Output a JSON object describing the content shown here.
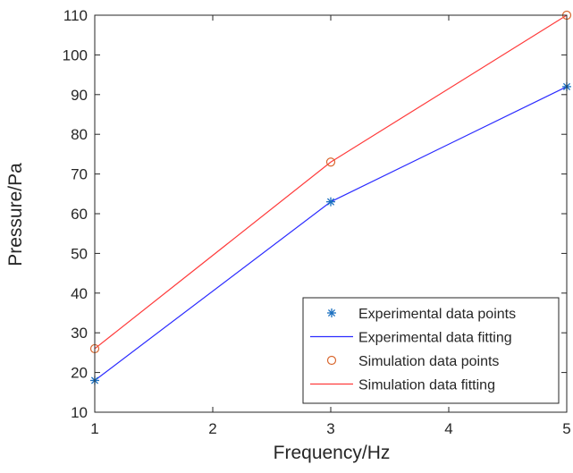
{
  "chart_data": {
    "type": "line",
    "title": "",
    "xlabel": "Frequency/Hz",
    "ylabel": "Pressure/Pa",
    "xlim": [
      1,
      5
    ],
    "ylim": [
      10,
      110
    ],
    "xticks": [
      1,
      2,
      3,
      4,
      5
    ],
    "yticks": [
      10,
      20,
      30,
      40,
      50,
      60,
      70,
      80,
      90,
      100,
      110
    ],
    "grid": false,
    "legend_position": "bottom-right",
    "series": [
      {
        "name": "Experimental data points",
        "kind": "marker",
        "marker": "asterisk",
        "color": "#1a6fbf",
        "x": [
          1,
          3,
          5
        ],
        "y": [
          18,
          63,
          92
        ]
      },
      {
        "name": "Experimental data fitting",
        "kind": "line",
        "color": "#2b2bff",
        "x": [
          1,
          3,
          5
        ],
        "y": [
          18,
          63,
          92
        ]
      },
      {
        "name": "Simulation data points",
        "kind": "marker",
        "marker": "circle",
        "color": "#d9672f",
        "x": [
          1,
          3,
          5
        ],
        "y": [
          26,
          73,
          110
        ]
      },
      {
        "name": "Simulation data fitting",
        "kind": "line",
        "color": "#ff3b3b",
        "x": [
          1,
          3,
          5
        ],
        "y": [
          26,
          73,
          110
        ]
      }
    ]
  }
}
